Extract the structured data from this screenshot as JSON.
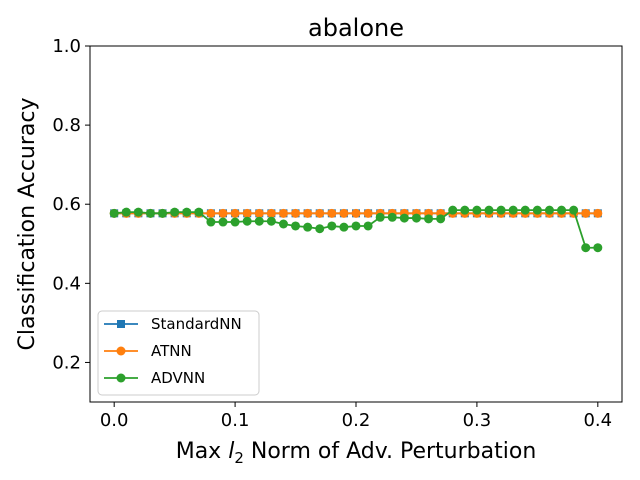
{
  "chart_data": {
    "type": "line",
    "title": "abalone",
    "xlabel_prefix": "Max ",
    "xlabel_italic": "l",
    "xlabel_sub": "2",
    "xlabel_suffix": " Norm of Adv. Perturbation",
    "ylabel": "Classification Accuracy",
    "xlim": [
      -0.02,
      0.42
    ],
    "ylim": [
      0.1,
      1.0
    ],
    "xticks": [
      0.0,
      0.1,
      0.2,
      0.3,
      0.4
    ],
    "xtick_labels": [
      "0.0",
      "0.1",
      "0.2",
      "0.3",
      "0.4"
    ],
    "yticks": [
      0.2,
      0.4,
      0.6,
      0.8,
      1.0
    ],
    "ytick_labels": [
      "0.2",
      "0.4",
      "0.6",
      "0.8",
      "1.0"
    ],
    "legend_position": "lower-left",
    "x": [
      0.0,
      0.01,
      0.02,
      0.03,
      0.04,
      0.05,
      0.06,
      0.07,
      0.08,
      0.09,
      0.1,
      0.11,
      0.12,
      0.13,
      0.14,
      0.15,
      0.16,
      0.17,
      0.18,
      0.19,
      0.2,
      0.21,
      0.22,
      0.23,
      0.24,
      0.25,
      0.26,
      0.27,
      0.28,
      0.29,
      0.3,
      0.31,
      0.32,
      0.33,
      0.34,
      0.35,
      0.36,
      0.37,
      0.38,
      0.39,
      0.4
    ],
    "series": [
      {
        "name": "StandardNN",
        "color": "#1f77b4",
        "marker": "square",
        "values": [
          0.577,
          0.577,
          0.577,
          0.577,
          0.577,
          0.577,
          0.577,
          0.577,
          0.577,
          0.577,
          0.577,
          0.577,
          0.577,
          0.577,
          0.577,
          0.577,
          0.577,
          0.577,
          0.577,
          0.577,
          0.577,
          0.577,
          0.577,
          0.577,
          0.577,
          0.577,
          0.577,
          0.577,
          0.577,
          0.577,
          0.577,
          0.577,
          0.577,
          0.577,
          0.577,
          0.577,
          0.577,
          0.577,
          0.577,
          0.577,
          0.577
        ]
      },
      {
        "name": "ATNN",
        "color": "#ff7f0e",
        "marker": "circle",
        "values": [
          0.577,
          0.577,
          0.577,
          0.577,
          0.577,
          0.577,
          0.577,
          0.577,
          0.577,
          0.577,
          0.577,
          0.577,
          0.577,
          0.577,
          0.577,
          0.577,
          0.577,
          0.577,
          0.577,
          0.577,
          0.577,
          0.577,
          0.577,
          0.577,
          0.577,
          0.577,
          0.577,
          0.577,
          0.577,
          0.577,
          0.577,
          0.577,
          0.577,
          0.577,
          0.577,
          0.577,
          0.577,
          0.577,
          0.577,
          0.577,
          0.577
        ]
      },
      {
        "name": "ADVNN",
        "color": "#2ca02c",
        "marker": "circle",
        "values": [
          0.577,
          0.58,
          0.58,
          0.577,
          0.577,
          0.58,
          0.58,
          0.58,
          0.555,
          0.555,
          0.555,
          0.557,
          0.557,
          0.557,
          0.55,
          0.545,
          0.542,
          0.538,
          0.545,
          0.542,
          0.545,
          0.545,
          0.567,
          0.567,
          0.565,
          0.565,
          0.563,
          0.563,
          0.585,
          0.585,
          0.585,
          0.585,
          0.585,
          0.585,
          0.585,
          0.585,
          0.585,
          0.585,
          0.585,
          0.49,
          0.49
        ]
      }
    ]
  }
}
